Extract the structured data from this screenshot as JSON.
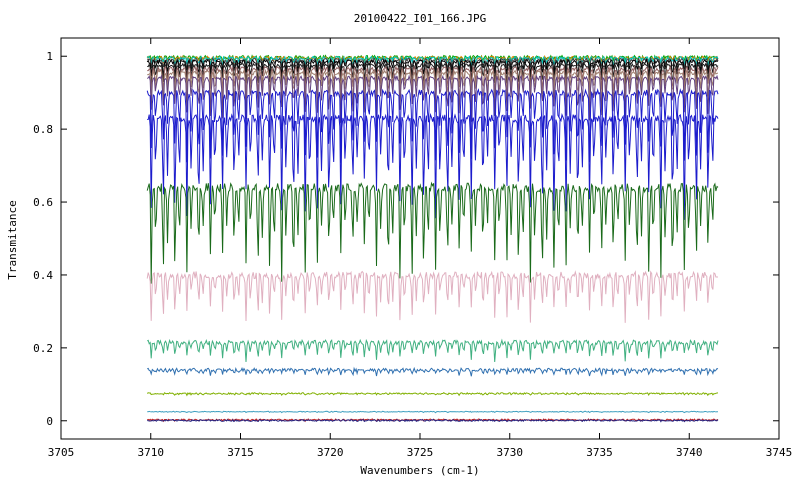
{
  "chart_data": {
    "type": "line",
    "title": "20100422_I01_166.JPG",
    "xlabel": "Wavenumbers (cm-1)",
    "ylabel": "Transmitance",
    "xlim": [
      3705,
      3745
    ],
    "ylim": [
      -0.05,
      1.05
    ],
    "xticks": [
      3705,
      3710,
      3715,
      3720,
      3725,
      3730,
      3735,
      3740,
      3745
    ],
    "xtick_labels": [
      "3705",
      "3710",
      "3715",
      "3720",
      "3725",
      "3730",
      "3735",
      "3740",
      "3745"
    ],
    "yticks": [
      0,
      0.2,
      0.4,
      0.6,
      0.8,
      1
    ],
    "ytick_labels": [
      "0",
      "0.2",
      "0.4",
      "0.6",
      "0.8",
      "1"
    ],
    "grid": false,
    "legend": "none",
    "x_range_data": [
      3709.8,
      3741.6
    ],
    "line_period_cm1": 0.66,
    "series": [
      {
        "color": "#00a000",
        "baseline": 0.998,
        "depth": 0.012,
        "noise": 0.004
      },
      {
        "color": "#e08000",
        "baseline": 0.996,
        "depth": 0.018,
        "noise": 0.004
      },
      {
        "color": "#00c8c8",
        "baseline": 0.995,
        "depth": 0.022,
        "noise": 0.004
      },
      {
        "color": "#404040",
        "baseline": 0.99,
        "depth": 0.03,
        "noise": 0.004
      },
      {
        "color": "#000000",
        "baseline": 0.985,
        "depth": 0.045,
        "noise": 0.005
      },
      {
        "color": "#202020",
        "baseline": 0.975,
        "depth": 0.06,
        "noise": 0.005
      },
      {
        "color": "#906060",
        "baseline": 0.965,
        "depth": 0.08,
        "noise": 0.006
      },
      {
        "color": "#a08070",
        "baseline": 0.955,
        "depth": 0.1,
        "noise": 0.006
      },
      {
        "color": "#604080",
        "baseline": 0.94,
        "depth": 0.12,
        "noise": 0.006
      },
      {
        "color": "#1c1ccc",
        "baseline": 0.9,
        "depth": 0.2,
        "noise": 0.008
      },
      {
        "color": "#1c1ccc",
        "baseline": 0.83,
        "depth": 0.28,
        "noise": 0.01
      },
      {
        "color": "#1a6a1a",
        "baseline": 0.64,
        "depth": 0.26,
        "noise": 0.012
      },
      {
        "color": "#e0b0c0",
        "baseline": 0.4,
        "depth": 0.13,
        "noise": 0.01
      },
      {
        "color": "#40b080",
        "baseline": 0.215,
        "depth": 0.05,
        "noise": 0.006
      },
      {
        "color": "#3070b0",
        "baseline": 0.14,
        "depth": 0.015,
        "noise": 0.004
      },
      {
        "color": "#80b000",
        "baseline": 0.075,
        "depth": 0.004,
        "noise": 0.002
      },
      {
        "color": "#40a0c0",
        "baseline": 0.025,
        "depth": 0.002,
        "noise": 0.001
      },
      {
        "color": "#c02020",
        "baseline": 0.003,
        "depth": 0.003,
        "noise": 0.002
      },
      {
        "color": "#202080",
        "baseline": 0.001,
        "depth": 0.002,
        "noise": 0.002
      }
    ]
  }
}
